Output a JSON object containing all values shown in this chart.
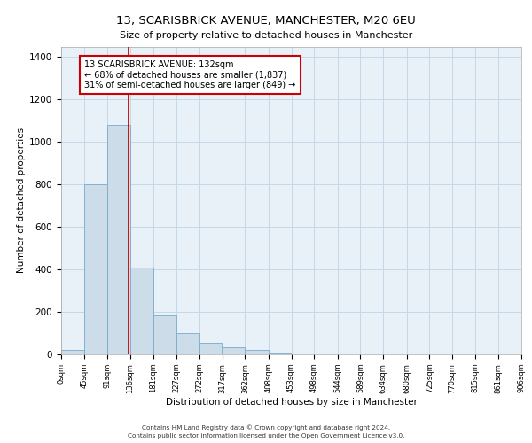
{
  "title1": "13, SCARISBRICK AVENUE, MANCHESTER, M20 6EU",
  "title2": "Size of property relative to detached houses in Manchester",
  "xlabel": "Distribution of detached houses by size in Manchester",
  "ylabel": "Number of detached properties",
  "annotation_line1": "13 SCARISBRICK AVENUE: 132sqm",
  "annotation_line2": "← 68% of detached houses are smaller (1,837)",
  "annotation_line3": "31% of semi-detached houses are larger (849) →",
  "property_size": 132,
  "bin_edges": [
    0,
    45,
    91,
    136,
    181,
    227,
    272,
    317,
    362,
    408,
    453,
    498,
    544,
    589,
    634,
    680,
    725,
    770,
    815,
    861,
    906
  ],
  "bar_heights": [
    20,
    800,
    1080,
    410,
    185,
    100,
    55,
    35,
    20,
    10,
    5,
    2,
    1,
    0,
    0,
    0,
    0,
    0,
    0,
    0
  ],
  "bar_color": "#ccdce8",
  "bar_edge_color": "#7aabcc",
  "vline_color": "#cc0000",
  "vline_x": 132,
  "annotation_box_color": "#cc0000",
  "grid_color": "#c5d8e8",
  "background_color": "#e8f0f8",
  "footer_line1": "Contains HM Land Registry data © Crown copyright and database right 2024.",
  "footer_line2": "Contains public sector information licensed under the Open Government Licence v3.0.",
  "ylim": [
    0,
    1450
  ],
  "yticks": [
    0,
    200,
    400,
    600,
    800,
    1000,
    1200,
    1400
  ]
}
